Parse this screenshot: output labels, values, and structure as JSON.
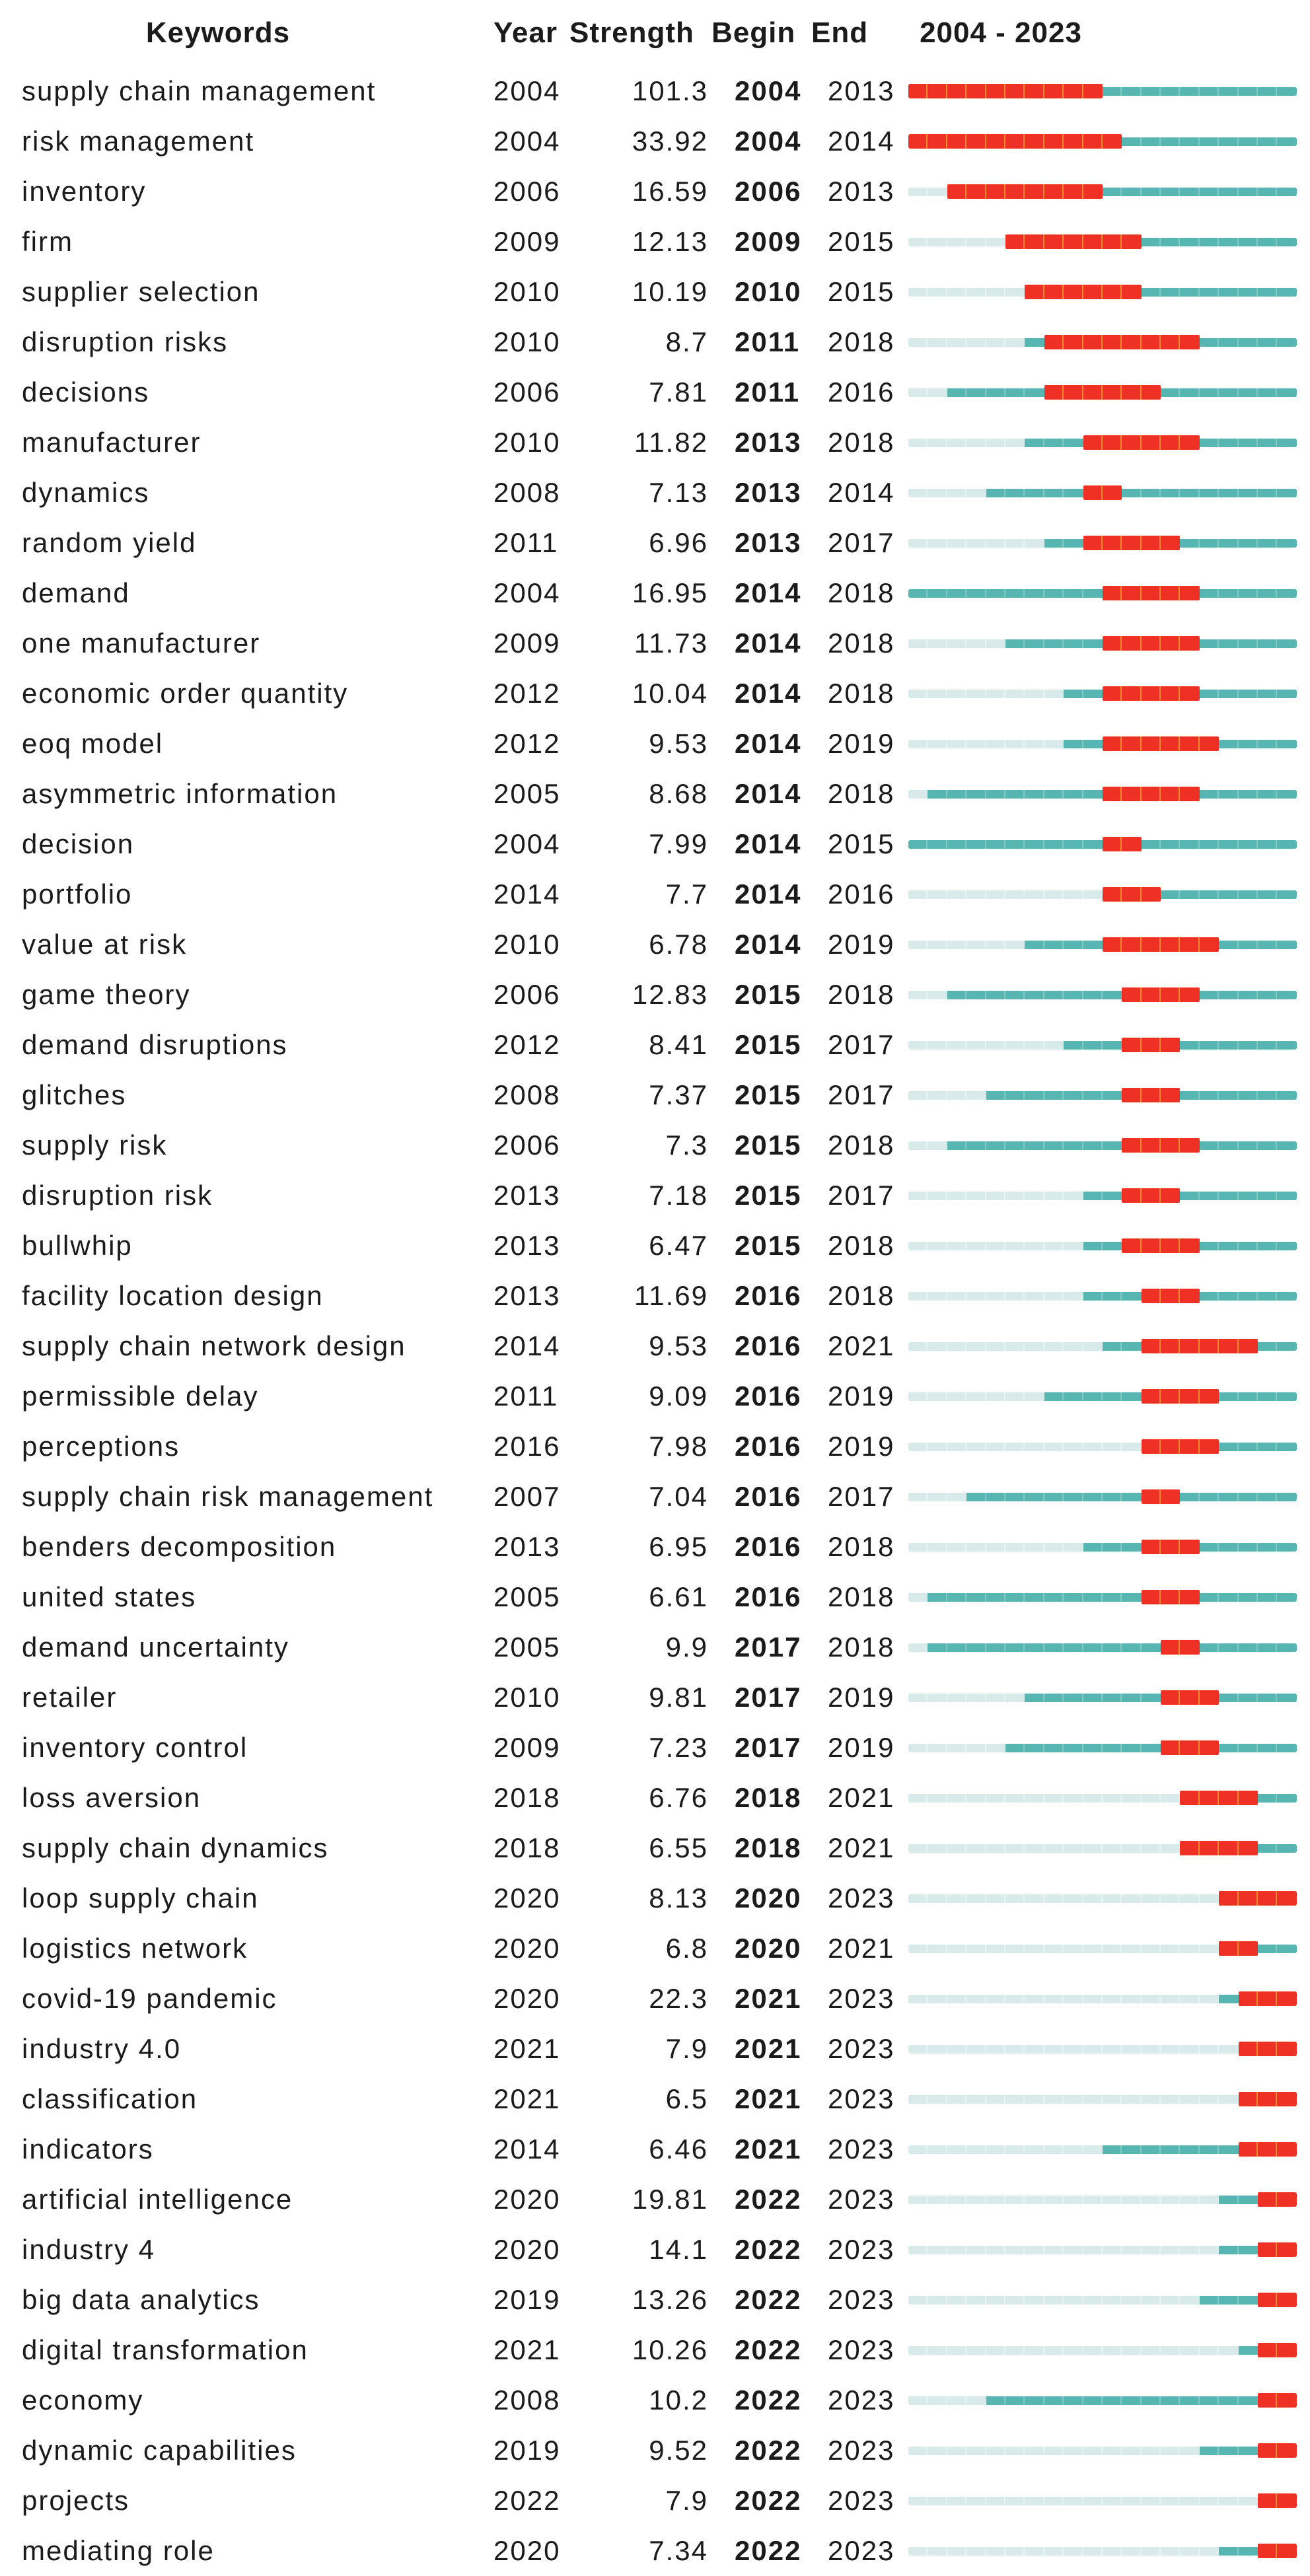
{
  "header": {
    "keywords": "Keywords",
    "year": "Year",
    "strength": "Strength",
    "begin": "Begin",
    "end": "End",
    "range": "2004 - 2023"
  },
  "chart_data": {
    "type": "table",
    "subtype": "citation-burst-timeline",
    "title": "",
    "columns": [
      "Keywords",
      "Year",
      "Strength",
      "Begin",
      "End",
      "2004 - 2023"
    ],
    "axis_range": [
      2004,
      2023
    ],
    "legend": {
      "burst_period_color": "#ee3124",
      "burst_year_tick_color": "#f28a2e",
      "active_period_color": "#58b6b2",
      "pre_appearance_color": "#d8eae9",
      "text_color": "#1b1b1b"
    },
    "rows": [
      {
        "keyword": "supply chain management",
        "year": 2004,
        "strength": "101.3",
        "begin": 2004,
        "end": 2013
      },
      {
        "keyword": "risk management",
        "year": 2004,
        "strength": "33.92",
        "begin": 2004,
        "end": 2014
      },
      {
        "keyword": "inventory",
        "year": 2006,
        "strength": "16.59",
        "begin": 2006,
        "end": 2013
      },
      {
        "keyword": "firm",
        "year": 2009,
        "strength": "12.13",
        "begin": 2009,
        "end": 2015
      },
      {
        "keyword": "supplier selection",
        "year": 2010,
        "strength": "10.19",
        "begin": 2010,
        "end": 2015
      },
      {
        "keyword": "disruption risks",
        "year": 2010,
        "strength": "8.7",
        "begin": 2011,
        "end": 2018
      },
      {
        "keyword": "decisions",
        "year": 2006,
        "strength": "7.81",
        "begin": 2011,
        "end": 2016
      },
      {
        "keyword": "manufacturer",
        "year": 2010,
        "strength": "11.82",
        "begin": 2013,
        "end": 2018
      },
      {
        "keyword": "dynamics",
        "year": 2008,
        "strength": "7.13",
        "begin": 2013,
        "end": 2014
      },
      {
        "keyword": "random yield",
        "year": 2011,
        "strength": "6.96",
        "begin": 2013,
        "end": 2017
      },
      {
        "keyword": "demand",
        "year": 2004,
        "strength": "16.95",
        "begin": 2014,
        "end": 2018
      },
      {
        "keyword": "one manufacturer",
        "year": 2009,
        "strength": "11.73",
        "begin": 2014,
        "end": 2018
      },
      {
        "keyword": "economic order quantity",
        "year": 2012,
        "strength": "10.04",
        "begin": 2014,
        "end": 2018
      },
      {
        "keyword": "eoq model",
        "year": 2012,
        "strength": "9.53",
        "begin": 2014,
        "end": 2019
      },
      {
        "keyword": "asymmetric information",
        "year": 2005,
        "strength": "8.68",
        "begin": 2014,
        "end": 2018
      },
      {
        "keyword": "decision",
        "year": 2004,
        "strength": "7.99",
        "begin": 2014,
        "end": 2015
      },
      {
        "keyword": "portfolio",
        "year": 2014,
        "strength": "7.7",
        "begin": 2014,
        "end": 2016
      },
      {
        "keyword": "value at risk",
        "year": 2010,
        "strength": "6.78",
        "begin": 2014,
        "end": 2019
      },
      {
        "keyword": "game theory",
        "year": 2006,
        "strength": "12.83",
        "begin": 2015,
        "end": 2018
      },
      {
        "keyword": "demand disruptions",
        "year": 2012,
        "strength": "8.41",
        "begin": 2015,
        "end": 2017
      },
      {
        "keyword": "glitches",
        "year": 2008,
        "strength": "7.37",
        "begin": 2015,
        "end": 2017
      },
      {
        "keyword": "supply risk",
        "year": 2006,
        "strength": "7.3",
        "begin": 2015,
        "end": 2018
      },
      {
        "keyword": "disruption risk",
        "year": 2013,
        "strength": "7.18",
        "begin": 2015,
        "end": 2017
      },
      {
        "keyword": "bullwhip",
        "year": 2013,
        "strength": "6.47",
        "begin": 2015,
        "end": 2018
      },
      {
        "keyword": "facility location design",
        "year": 2013,
        "strength": "11.69",
        "begin": 2016,
        "end": 2018
      },
      {
        "keyword": "supply chain network design",
        "year": 2014,
        "strength": "9.53",
        "begin": 2016,
        "end": 2021
      },
      {
        "keyword": "permissible delay",
        "year": 2011,
        "strength": "9.09",
        "begin": 2016,
        "end": 2019
      },
      {
        "keyword": "perceptions",
        "year": 2016,
        "strength": "7.98",
        "begin": 2016,
        "end": 2019
      },
      {
        "keyword": "supply chain risk management",
        "year": 2007,
        "strength": "7.04",
        "begin": 2016,
        "end": 2017
      },
      {
        "keyword": "benders decomposition",
        "year": 2013,
        "strength": "6.95",
        "begin": 2016,
        "end": 2018
      },
      {
        "keyword": "united states",
        "year": 2005,
        "strength": "6.61",
        "begin": 2016,
        "end": 2018
      },
      {
        "keyword": "demand uncertainty",
        "year": 2005,
        "strength": "9.9",
        "begin": 2017,
        "end": 2018
      },
      {
        "keyword": "retailer",
        "year": 2010,
        "strength": "9.81",
        "begin": 2017,
        "end": 2019
      },
      {
        "keyword": "inventory control",
        "year": 2009,
        "strength": "7.23",
        "begin": 2017,
        "end": 2019
      },
      {
        "keyword": "loss aversion",
        "year": 2018,
        "strength": "6.76",
        "begin": 2018,
        "end": 2021
      },
      {
        "keyword": "supply chain dynamics",
        "year": 2018,
        "strength": "6.55",
        "begin": 2018,
        "end": 2021
      },
      {
        "keyword": "loop supply chain",
        "year": 2020,
        "strength": "8.13",
        "begin": 2020,
        "end": 2023
      },
      {
        "keyword": "logistics network",
        "year": 2020,
        "strength": "6.8",
        "begin": 2020,
        "end": 2021
      },
      {
        "keyword": "covid-19 pandemic",
        "year": 2020,
        "strength": "22.3",
        "begin": 2021,
        "end": 2023
      },
      {
        "keyword": "industry 4.0",
        "year": 2021,
        "strength": "7.9",
        "begin": 2021,
        "end": 2023
      },
      {
        "keyword": "classification",
        "year": 2021,
        "strength": "6.5",
        "begin": 2021,
        "end": 2023
      },
      {
        "keyword": "indicators",
        "year": 2014,
        "strength": "6.46",
        "begin": 2021,
        "end": 2023
      },
      {
        "keyword": "artificial intelligence",
        "year": 2020,
        "strength": "19.81",
        "begin": 2022,
        "end": 2023
      },
      {
        "keyword": "industry 4",
        "year": 2020,
        "strength": "14.1",
        "begin": 2022,
        "end": 2023
      },
      {
        "keyword": "big data analytics",
        "year": 2019,
        "strength": "13.26",
        "begin": 2022,
        "end": 2023
      },
      {
        "keyword": "digital transformation",
        "year": 2021,
        "strength": "10.26",
        "begin": 2022,
        "end": 2023
      },
      {
        "keyword": "economy",
        "year": 2008,
        "strength": "10.2",
        "begin": 2022,
        "end": 2023
      },
      {
        "keyword": "dynamic capabilities",
        "year": 2019,
        "strength": "9.52",
        "begin": 2022,
        "end": 2023
      },
      {
        "keyword": "projects",
        "year": 2022,
        "strength": "7.9",
        "begin": 2022,
        "end": 2023
      },
      {
        "keyword": "mediating role",
        "year": 2020,
        "strength": "7.34",
        "begin": 2022,
        "end": 2023
      }
    ]
  }
}
